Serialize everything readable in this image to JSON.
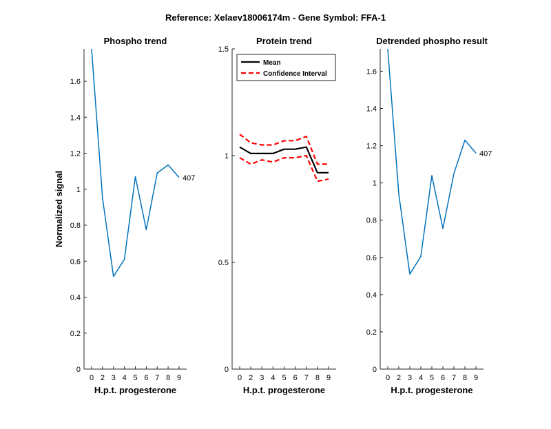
{
  "figure_title": "Reference:  Xelaev18006174m - Gene Symbol:  FFA-1",
  "chart_data": [
    {
      "type": "line",
      "title": "Phospho trend",
      "xlabel": "H.p.t. progesterone",
      "ylabel": "Normalized signal",
      "categories": [
        "0",
        "2",
        "3",
        "4",
        "5",
        "6",
        "7",
        "8",
        "9"
      ],
      "ylim": [
        0,
        1.78
      ],
      "yticks": [
        0,
        0.2,
        0.4,
        0.6,
        0.8,
        1,
        1.2,
        1.4,
        1.6
      ],
      "ytick_labels": [
        "0",
        "0.2",
        "0.4",
        "0.6",
        "0.8",
        "1",
        "1.2",
        "1.4",
        "1.6"
      ],
      "series": [
        {
          "values": [
            1.78,
            0.95,
            0.515,
            0.61,
            1.07,
            0.775,
            1.09,
            1.135,
            1.065
          ],
          "color": "#0072BD",
          "end_label": "407"
        }
      ]
    },
    {
      "type": "line",
      "title": "Protein trend",
      "xlabel": "H.p.t. progesterone",
      "ylabel": "",
      "categories": [
        "0",
        "2",
        "3",
        "4",
        "5",
        "6",
        "7",
        "8",
        "9"
      ],
      "ylim": [
        0,
        1.5
      ],
      "yticks": [
        0,
        0.5,
        1,
        1.5
      ],
      "ytick_labels": [
        "0",
        "0.5",
        "1",
        "1.5"
      ],
      "legend_position": "top-left",
      "series": [
        {
          "name": "Mean",
          "values": [
            1.04,
            1.01,
            1.01,
            1.01,
            1.03,
            1.03,
            1.04,
            0.92,
            0.92
          ],
          "color": "#000000",
          "style": "solid"
        },
        {
          "name": "Confidence Interval",
          "values": [
            1.1,
            1.06,
            1.05,
            1.05,
            1.07,
            1.07,
            1.09,
            0.96,
            0.96
          ],
          "color": "#FF0000",
          "style": "dashed",
          "legend": true
        },
        {
          "name": "Confidence Interval",
          "values": [
            0.99,
            0.96,
            0.98,
            0.97,
            0.99,
            0.99,
            1.0,
            0.88,
            0.89
          ],
          "color": "#FF0000",
          "style": "dashed",
          "legend": false
        }
      ]
    },
    {
      "type": "line",
      "title": "Detrended phospho result",
      "xlabel": "H.p.t. progesterone",
      "ylabel": "",
      "categories": [
        "0",
        "2",
        "3",
        "4",
        "5",
        "6",
        "7",
        "8",
        "9"
      ],
      "ylim": [
        0,
        1.72
      ],
      "yticks": [
        0,
        0.2,
        0.4,
        0.6,
        0.8,
        1,
        1.2,
        1.4,
        1.6
      ],
      "ytick_labels": [
        "0",
        "0.2",
        "0.4",
        "0.6",
        "0.8",
        "1",
        "1.2",
        "1.4",
        "1.6"
      ],
      "series": [
        {
          "values": [
            1.72,
            0.94,
            0.51,
            0.605,
            1.04,
            0.755,
            1.05,
            1.23,
            1.16
          ],
          "color": "#0072BD",
          "end_label": "407"
        }
      ]
    }
  ]
}
